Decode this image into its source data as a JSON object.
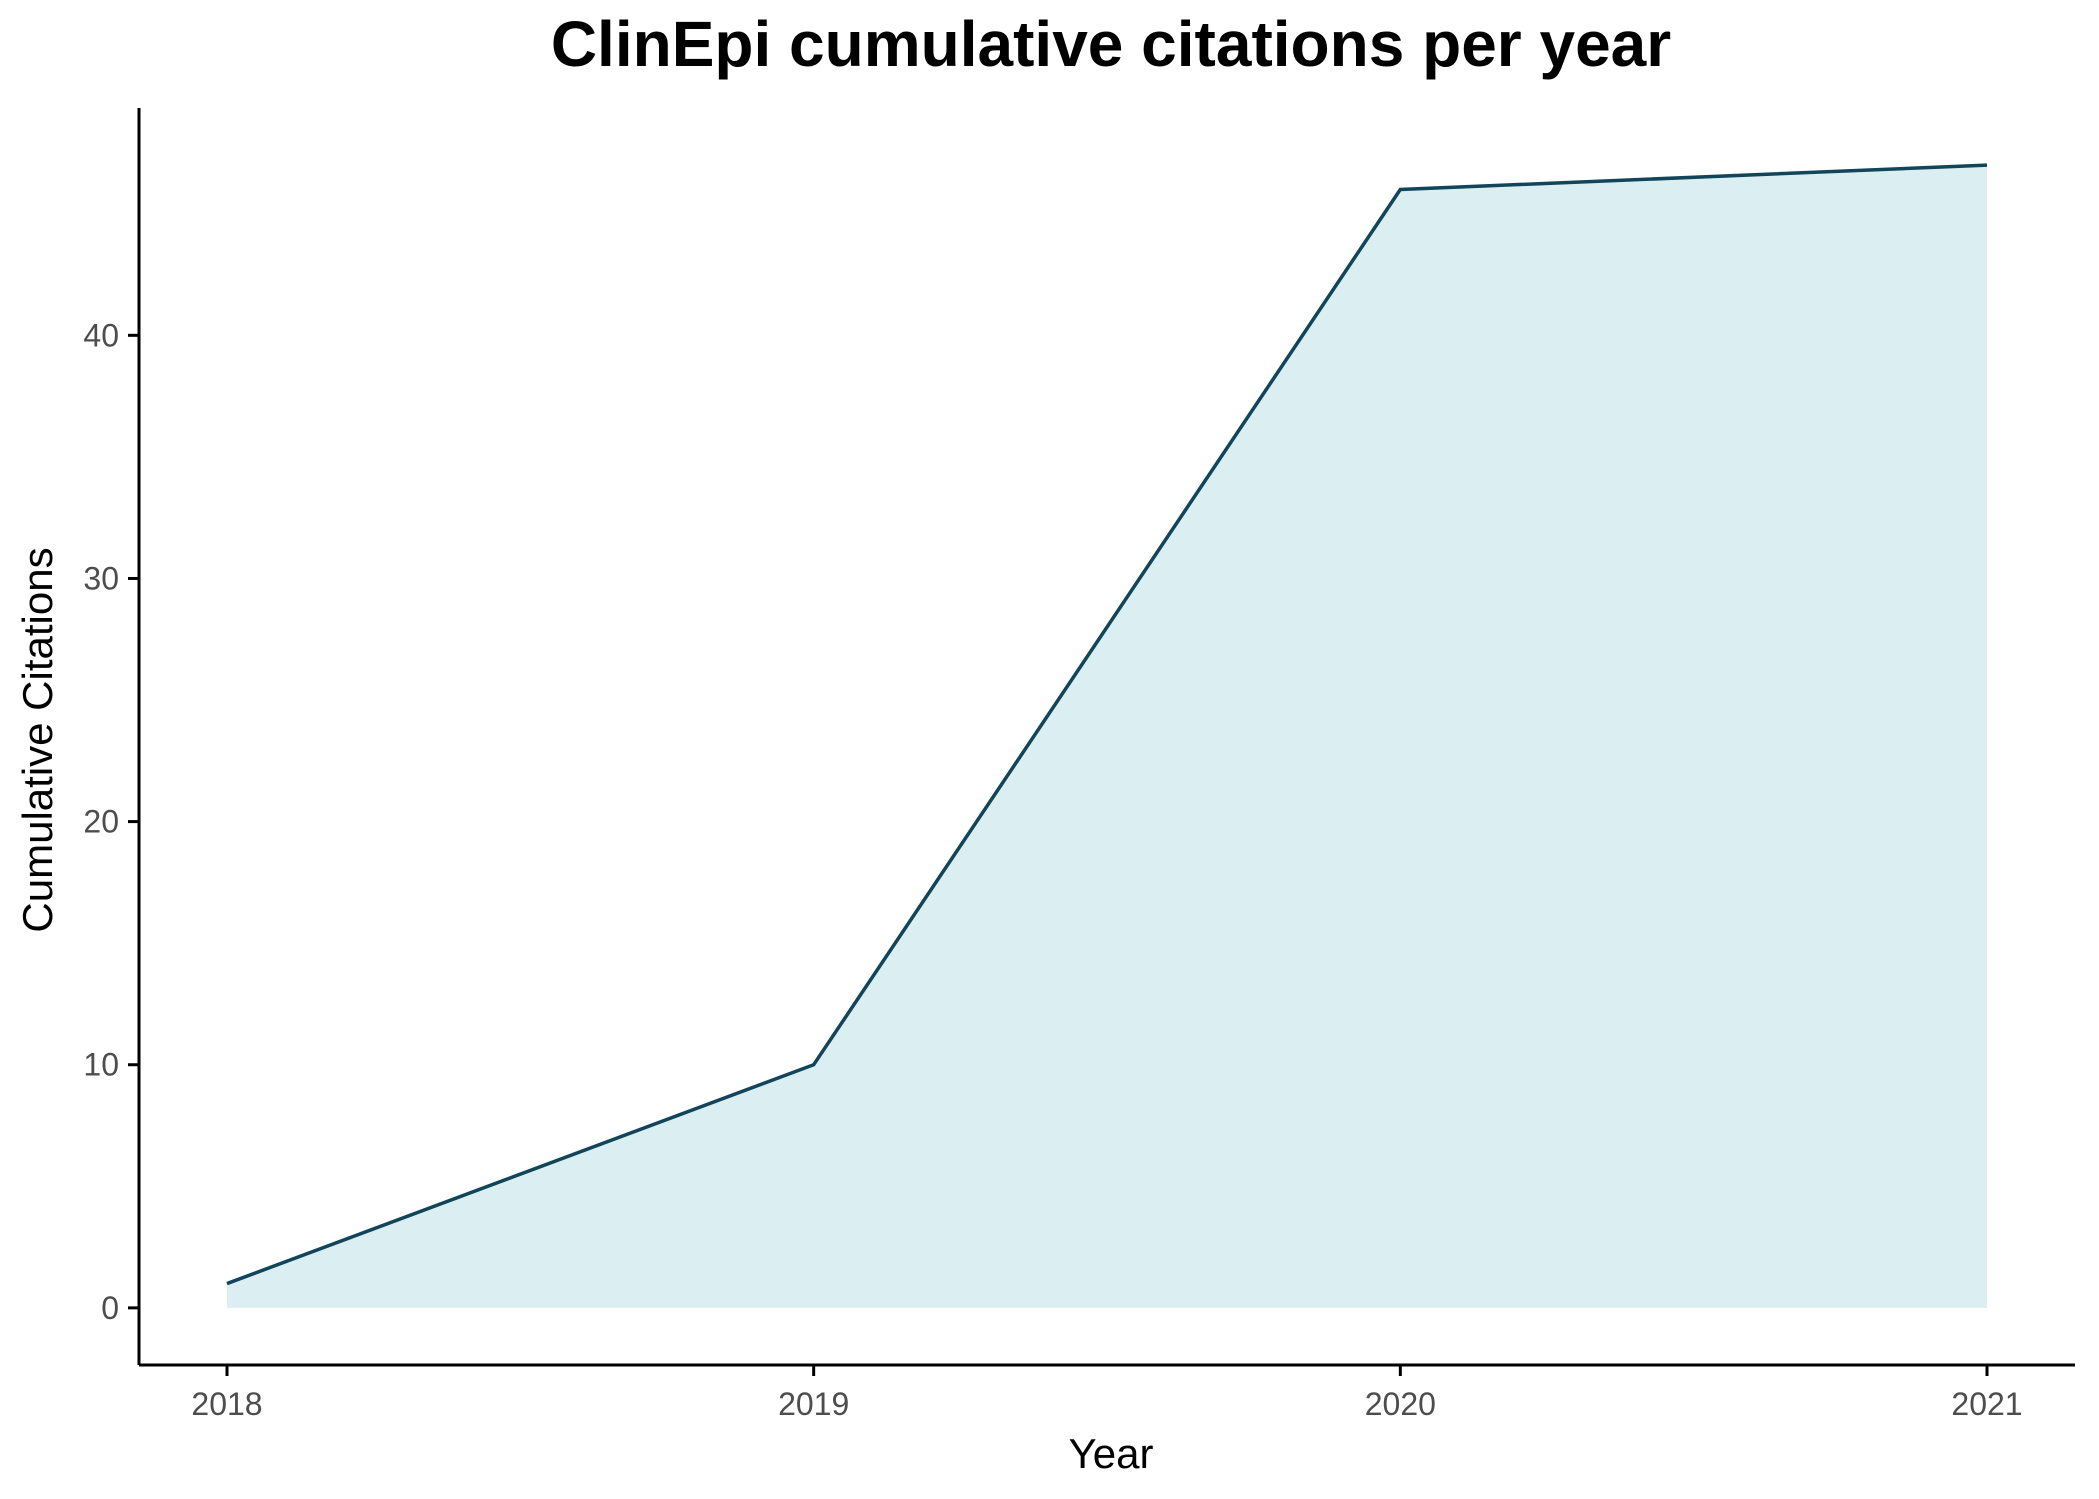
{
  "chart_data": {
    "type": "area",
    "title": "ClinEpi cumulative citations per year",
    "xlabel": "Year",
    "ylabel": "Cumulative Citations",
    "x": [
      2018,
      2019,
      2020,
      2021
    ],
    "series": [
      {
        "values": [
          1,
          10,
          46,
          47
        ]
      }
    ],
    "xticks": [
      "2018",
      "2019",
      "2020",
      "2021"
    ],
    "yticks": [
      0,
      10,
      20,
      30,
      40
    ],
    "xlim": [
      2017.85,
      2021.15
    ],
    "ylim": [
      -2.35,
      49.35
    ],
    "grid": false,
    "legend": "none",
    "colors": {
      "fill": "#dbeff3",
      "line": "#12445a"
    }
  }
}
